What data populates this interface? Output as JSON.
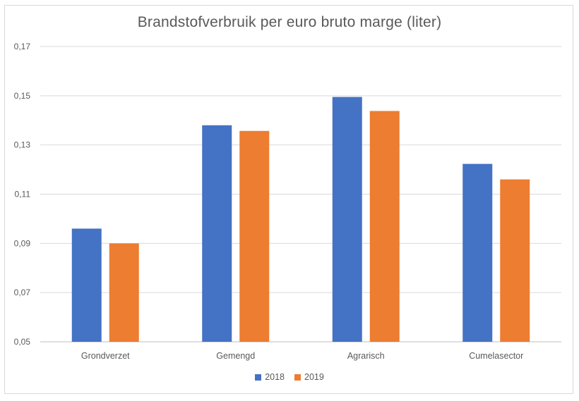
{
  "chart_data": {
    "type": "bar",
    "title": "Brandstofverbruik per euro bruto marge (liter)",
    "xlabel": "",
    "ylabel": "",
    "categories": [
      "Grondverzet",
      "Gemengd",
      "Agrarisch",
      "Cumelasector"
    ],
    "series": [
      {
        "name": "2018",
        "color": "#4472C4",
        "values": [
          0.096,
          0.138,
          0.1495,
          0.1223
        ]
      },
      {
        "name": "2019",
        "color": "#ED7D31",
        "values": [
          0.09,
          0.1357,
          0.1438,
          0.116
        ]
      }
    ],
    "ylim": [
      0.05,
      0.17
    ],
    "yticks": [
      "0,05",
      "0,07",
      "0,09",
      "0,11",
      "0,13",
      "0,15",
      "0,17"
    ],
    "ytick_values": [
      0.05,
      0.07,
      0.09,
      0.11,
      0.13,
      0.15,
      0.17
    ],
    "grid": true,
    "legend_position": "bottom"
  }
}
